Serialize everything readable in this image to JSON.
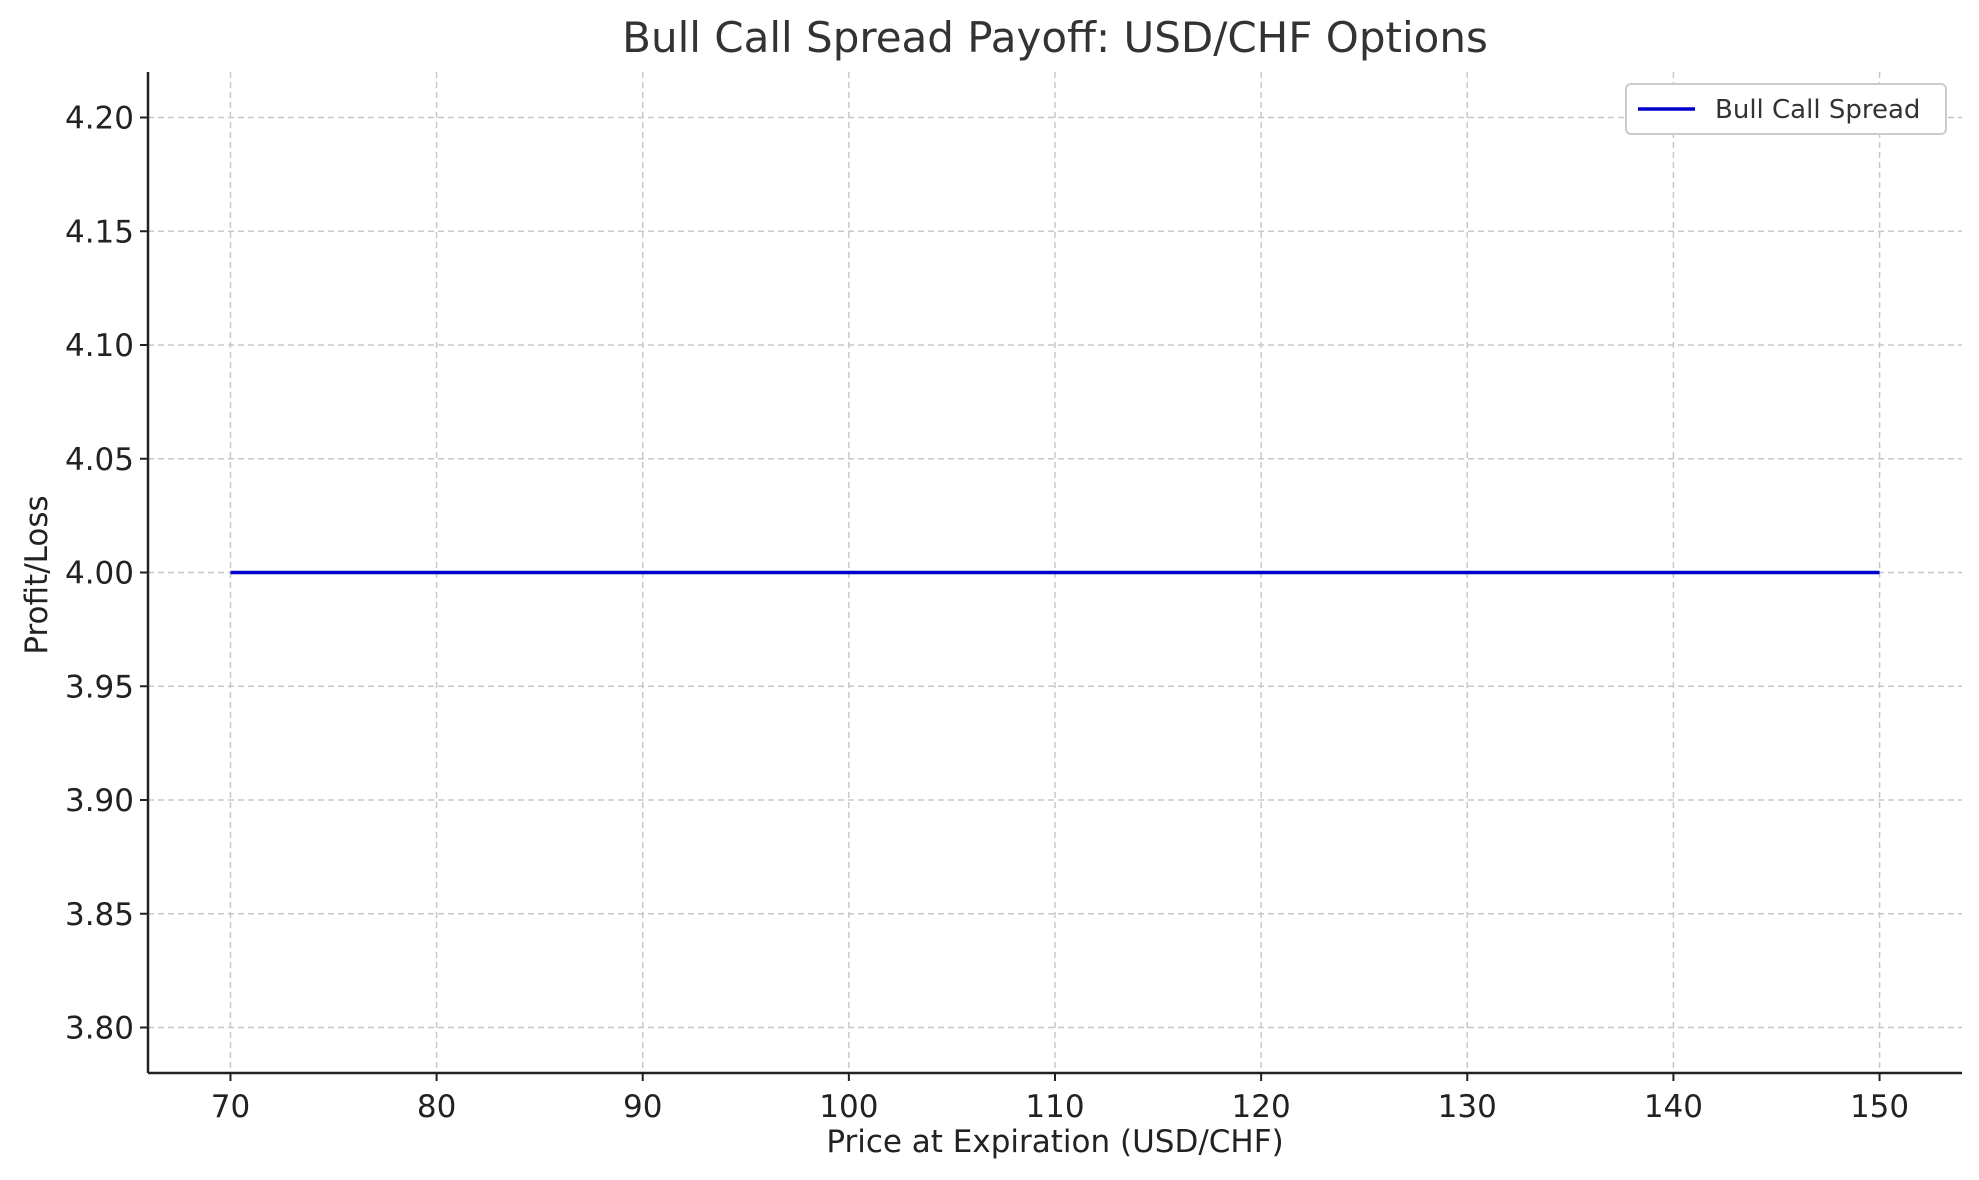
{
  "chart_data": {
    "type": "line",
    "title": "Bull Call Spread Payoff: USD/CHF Options",
    "xlabel": "Price at Expiration (USD/CHF)",
    "ylabel": "Profit/Loss",
    "xlim": [
      66,
      154
    ],
    "ylim": [
      3.78,
      4.22
    ],
    "xticks": [
      70,
      80,
      90,
      100,
      110,
      120,
      130,
      140,
      150
    ],
    "xtick_labels": [
      "70",
      "80",
      "90",
      "100",
      "110",
      "120",
      "130",
      "140",
      "150"
    ],
    "yticks": [
      3.8,
      3.85,
      3.9,
      3.95,
      4.0,
      4.05,
      4.1,
      4.15,
      4.2
    ],
    "ytick_labels": [
      "3.80",
      "3.85",
      "3.90",
      "3.95",
      "4.00",
      "4.05",
      "4.10",
      "4.15",
      "4.20"
    ],
    "grid": true,
    "legend_position": "top-right",
    "series": [
      {
        "name": "Bull Call Spread",
        "color": "#0000cc",
        "x": [
          70,
          150
        ],
        "y": [
          4.0,
          4.0
        ]
      }
    ]
  }
}
